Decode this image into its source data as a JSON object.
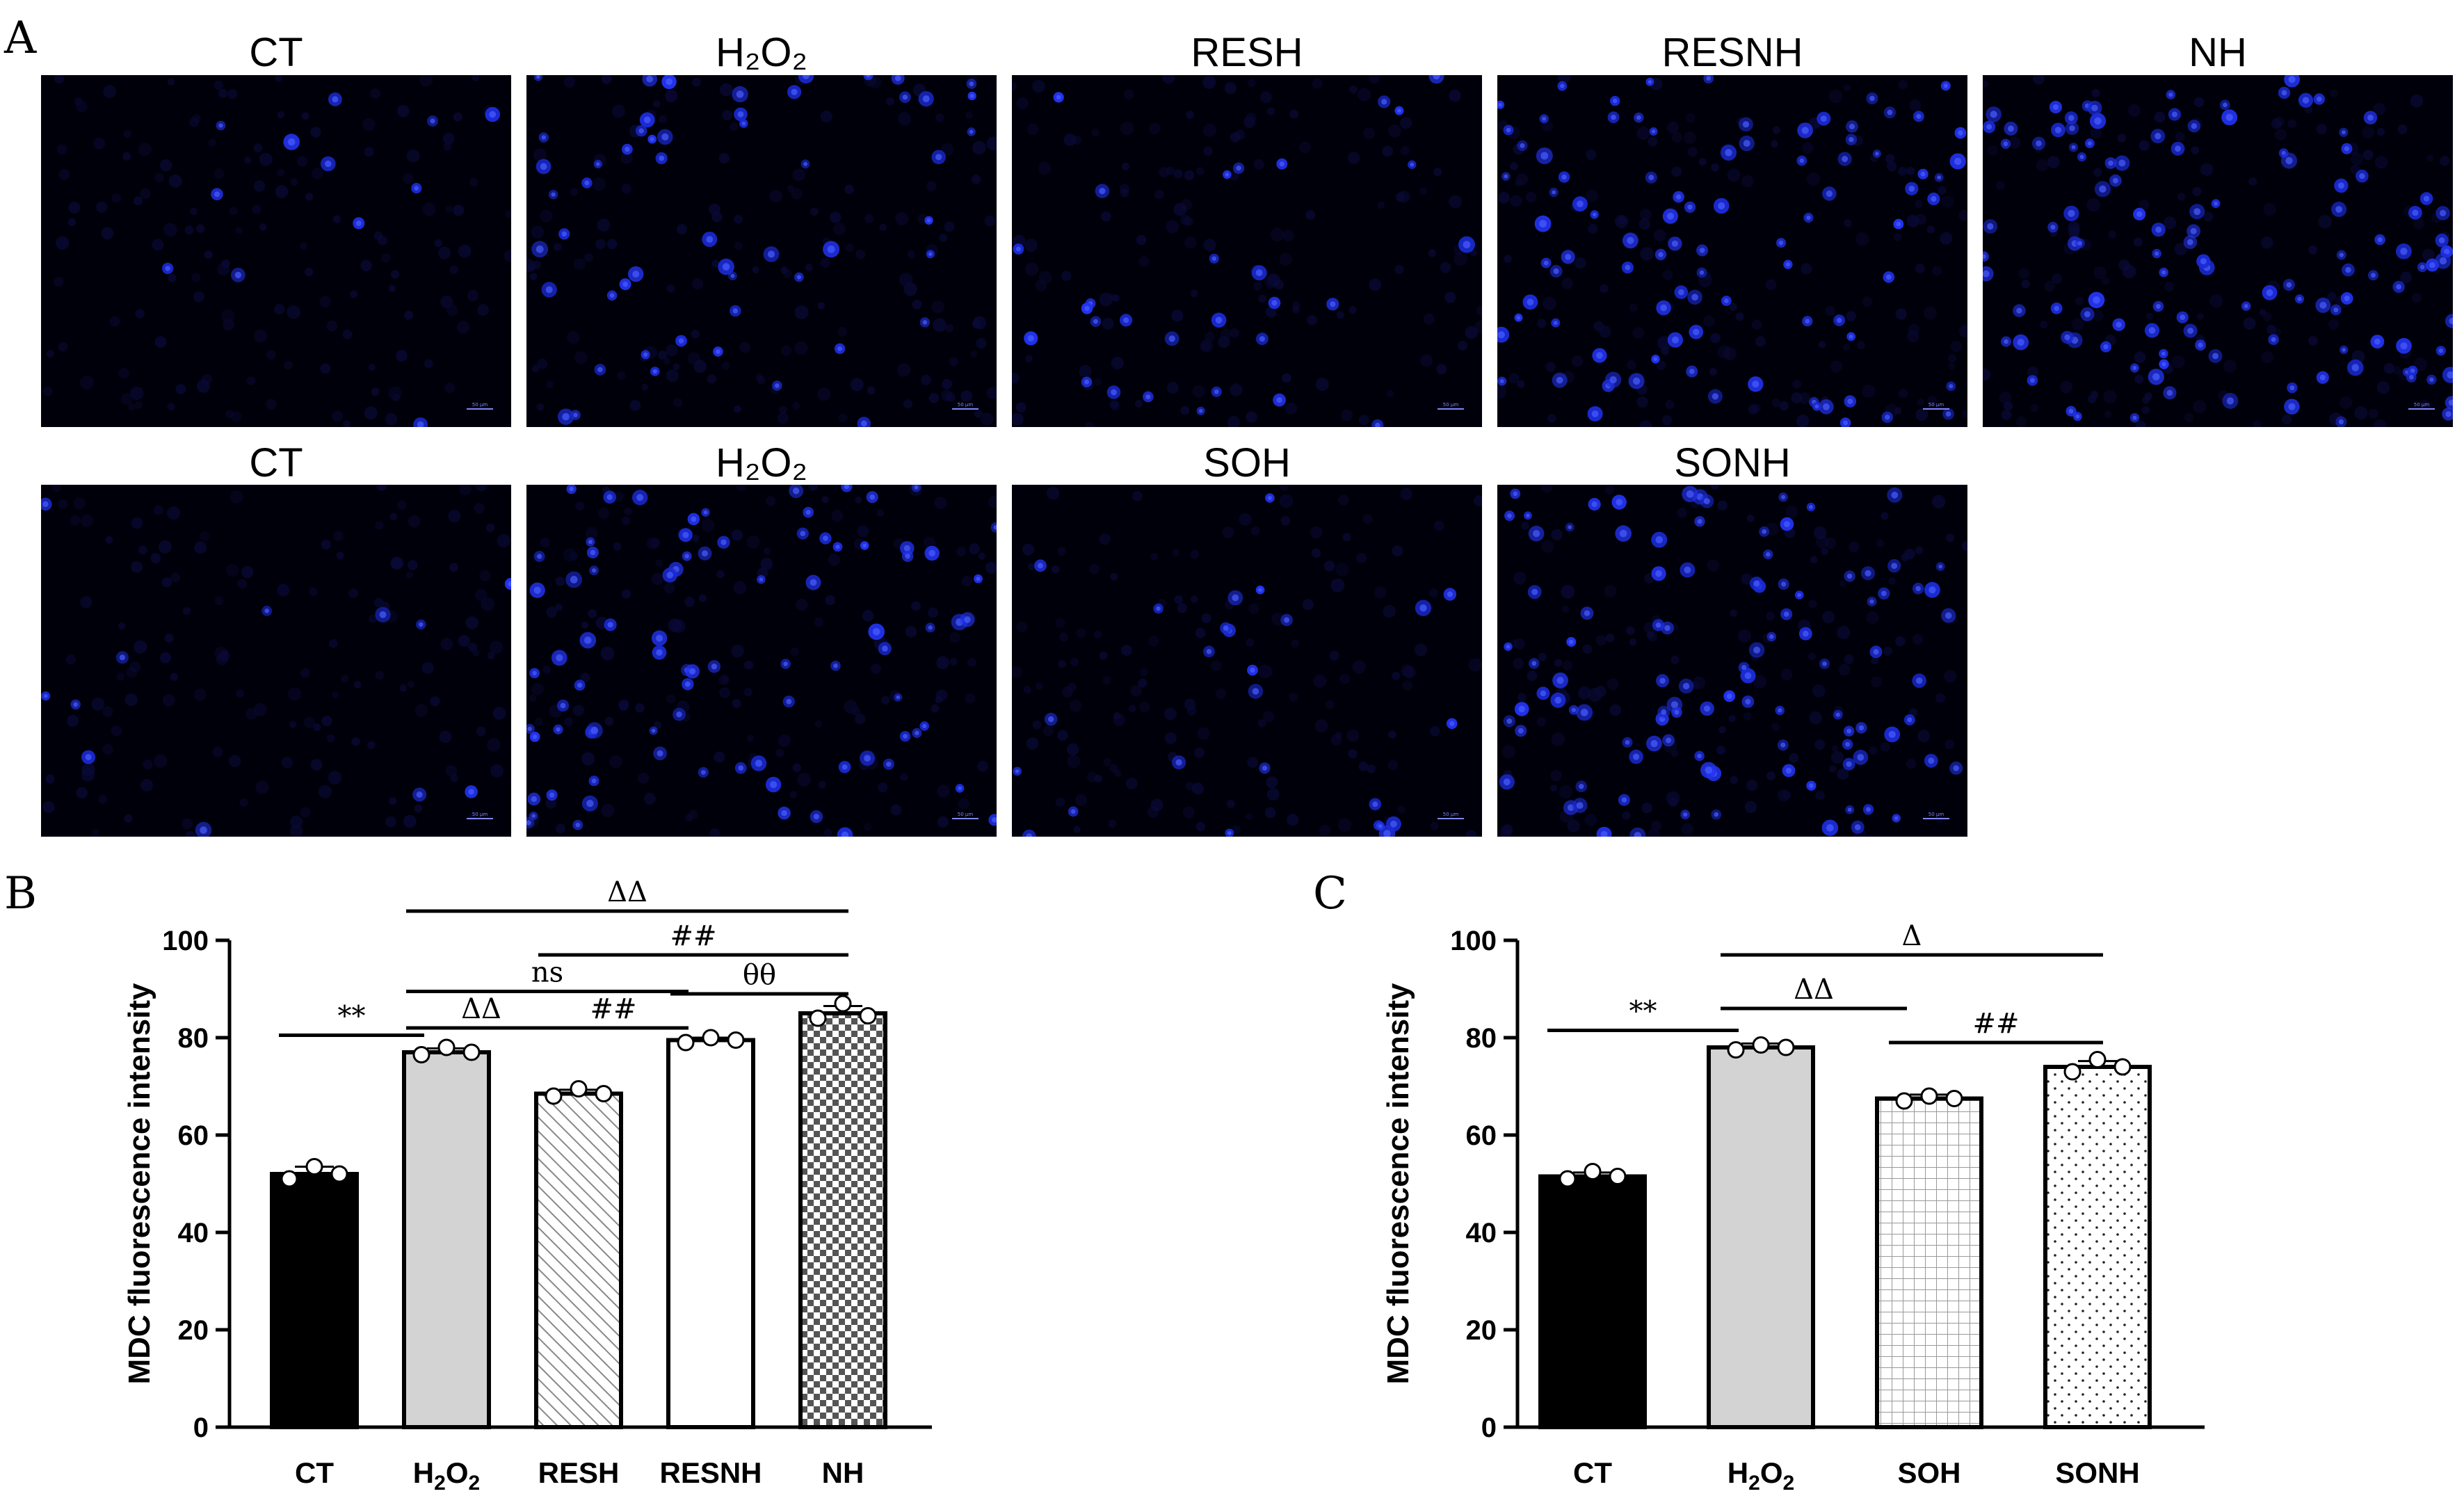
{
  "panels": {
    "a_letter": "A",
    "b_letter": "B",
    "c_letter": "C"
  },
  "micrographs": {
    "row1": [
      {
        "title": "CT",
        "density": 0.1
      },
      {
        "title": "H₂O₂",
        "density": 0.45
      },
      {
        "title": "RESH",
        "density": 0.25
      },
      {
        "title": "RESNH",
        "density": 0.75
      },
      {
        "title": "NH",
        "density": 1.0
      }
    ],
    "row2": [
      {
        "title": "CT",
        "density": 0.1
      },
      {
        "title": "H₂O₂",
        "density": 0.7
      },
      {
        "title": "SOH",
        "density": 0.22
      },
      {
        "title": "SONH",
        "density": 0.85
      }
    ],
    "scale_bar_label": "50 μm"
  },
  "chart_data": [
    {
      "type": "bar",
      "panel": "B",
      "ylabel": "MDC fluorescence intensity",
      "ylim": [
        0,
        100
      ],
      "yticks": [
        0,
        20,
        40,
        60,
        80,
        100
      ],
      "categories": [
        "CT",
        "H2O2",
        "RESH",
        "RESNH",
        "NH"
      ],
      "values": [
        52,
        77,
        68.5,
        79.5,
        85
      ],
      "errors": [
        1.5,
        0.8,
        0.8,
        0.5,
        1.5
      ],
      "points": [
        [
          51,
          53.5,
          52
        ],
        [
          76.5,
          78,
          77
        ],
        [
          68,
          69.5,
          68.5
        ],
        [
          79,
          80,
          79.5
        ],
        [
          84,
          87,
          84.5
        ]
      ],
      "patterns": [
        "solid-black",
        "solid-gray",
        "diagonal-hatch",
        "white",
        "checker"
      ],
      "significance": [
        {
          "from": 0,
          "to": 1,
          "label": "**",
          "y": 80.5
        },
        {
          "from": 1,
          "to": 2,
          "label": "ΔΔ",
          "y": 82
        },
        {
          "from": 2,
          "to": 3,
          "label": "##",
          "y": 82
        },
        {
          "from": 3,
          "to": 4,
          "label": "θθ",
          "y": 89
        },
        {
          "from": 1,
          "to": 3,
          "label": "ns",
          "y": 89.5
        },
        {
          "from": 2,
          "to": 4,
          "label": "##",
          "y": 97
        },
        {
          "from": 1,
          "to": 4,
          "label": "ΔΔ",
          "y": 106
        }
      ]
    },
    {
      "type": "bar",
      "panel": "C",
      "ylabel": "MDC fluorescence intensity",
      "ylim": [
        0,
        100
      ],
      "yticks": [
        0,
        20,
        40,
        60,
        80,
        100
      ],
      "categories": [
        "CT",
        "H2O2",
        "SOH",
        "SONH"
      ],
      "values": [
        51.5,
        78,
        67.5,
        74
      ],
      "errors": [
        0.8,
        0.8,
        0.8,
        1.2
      ],
      "points": [
        [
          51,
          52.5,
          51.5
        ],
        [
          77.5,
          78.5,
          78
        ],
        [
          67,
          68,
          67.5
        ],
        [
          73,
          75.5,
          74
        ]
      ],
      "patterns": [
        "solid-black",
        "solid-gray",
        "grid",
        "dots"
      ],
      "significance": [
        {
          "from": 0,
          "to": 1,
          "label": "**",
          "y": 81.5
        },
        {
          "from": 1,
          "to": 2,
          "label": "ΔΔ",
          "y": 86
        },
        {
          "from": 2,
          "to": 3,
          "label": "##",
          "y": 79
        },
        {
          "from": 1,
          "to": 3,
          "label": "Δ",
          "y": 97
        }
      ]
    }
  ]
}
